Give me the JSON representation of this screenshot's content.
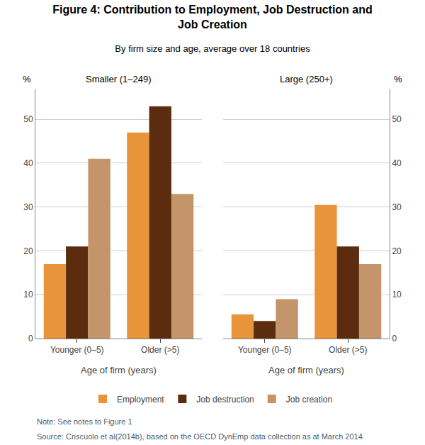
{
  "title": "Figure 4: Contribution to Employment, Job Destruction and\nJob Creation",
  "subtitle": "By firm size and age, average over 18 countries",
  "annotations": [
    "Note: See notes to Figure 1",
    "Source: Criscuolo et al(2014b), based on the OECD DynEmp data collection as at March 2014"
  ],
  "chart_data": [
    {
      "type": "bar",
      "title": "Smaller (1–249)",
      "xlabel": "Age of firm (years)",
      "ylabel": "%",
      "categories": [
        "Younger (0–5)",
        "Older (>5)"
      ],
      "series": [
        {
          "name": "Employment",
          "color": "#E8943A",
          "values": [
            17,
            47
          ]
        },
        {
          "name": "Job destruction",
          "color": "#5C2C0E",
          "values": [
            21,
            53
          ]
        },
        {
          "name": "Job creation",
          "color": "#C4956A",
          "values": [
            41,
            33
          ]
        }
      ],
      "ylim": [
        0,
        57
      ],
      "yticks": [
        0,
        10,
        20,
        30,
        40,
        50
      ],
      "grid": true,
      "legend": "bottom"
    },
    {
      "type": "bar",
      "title": "Large (250+)",
      "xlabel": "Age of firm (years)",
      "ylabel": "%",
      "categories": [
        "Younger (0–5)",
        "Older (>5)"
      ],
      "series": [
        {
          "name": "Employment",
          "color": "#E8943A",
          "values": [
            5.5,
            30.5
          ]
        },
        {
          "name": "Job destruction",
          "color": "#5C2C0E",
          "values": [
            4,
            21
          ]
        },
        {
          "name": "Job creation",
          "color": "#C4956A",
          "values": [
            9,
            17
          ]
        }
      ],
      "ylim": [
        0,
        57
      ],
      "yticks": [
        0,
        10,
        20,
        30,
        40,
        50
      ],
      "grid": true,
      "legend": "bottom"
    }
  ]
}
